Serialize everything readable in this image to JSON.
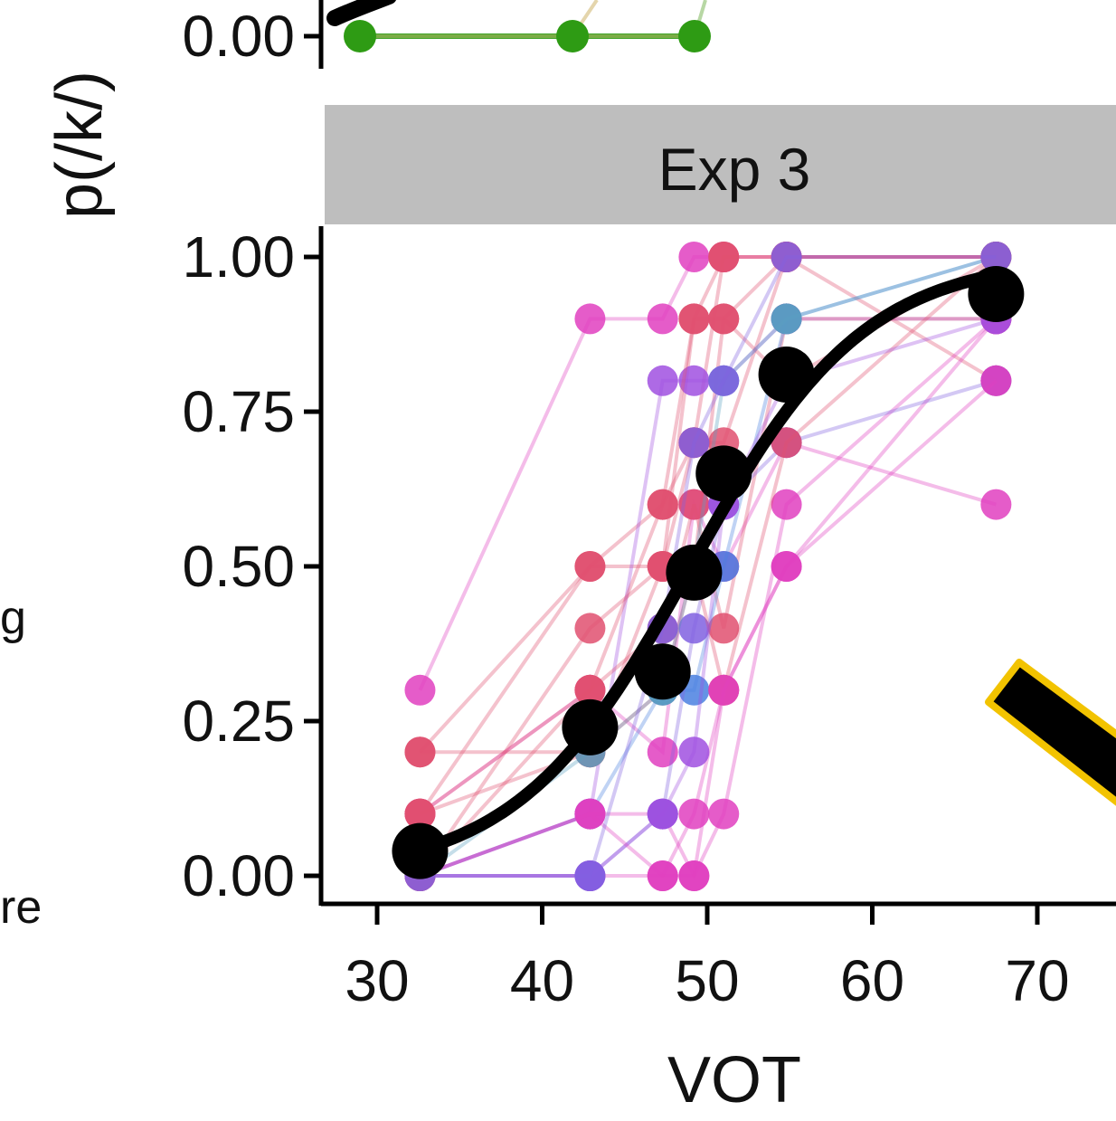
{
  "edge_text": {
    "left_fragment_1": "g",
    "left_fragment_2": "re"
  },
  "colors": {
    "fit_line": "#000000",
    "strip_bg": "#bebebe",
    "annotation_fill": "#000000",
    "annotation_outline": "#f2c300",
    "upper_panel_series": [
      "#2e9b14",
      "#c9ab5a",
      "#6fb04a"
    ]
  },
  "chart_data": [
    {
      "type": "line",
      "panel": "upper (cropped)",
      "ylabel": "p(/k/)",
      "visible_tick_labels": [
        "0.00"
      ],
      "x": [
        30,
        43,
        50.5
      ],
      "series": [
        {
          "values": [
            0.0,
            0.0,
            0.0
          ]
        }
      ]
    },
    {
      "type": "line",
      "title": "Exp 3",
      "xlabel": "VOT",
      "ylabel": "p(/k/)",
      "xlim": [
        26.5,
        73.5
      ],
      "ylim": [
        -0.045,
        1.05
      ],
      "x_ticks": [
        30,
        40,
        50,
        60,
        70
      ],
      "y_ticks": [
        0.0,
        0.25,
        0.5,
        0.75,
        1.0
      ],
      "y_tick_labels": [
        "0.00",
        "0.25",
        "0.50",
        "0.75",
        "1.00"
      ],
      "x": [
        32.6,
        42.9,
        47.3,
        49.2,
        51.0,
        54.8,
        67.5
      ],
      "mean": [
        0.04,
        0.24,
        0.33,
        0.49,
        0.65,
        0.81,
        0.94
      ],
      "fit_curve": {
        "form": "logistic",
        "midpoint": 49.0,
        "slope": 0.19
      },
      "individual_series": [
        {
          "color": "#e040c0",
          "values": [
            0.3,
            0.9,
            0.9,
            1.0,
            1.0,
            1.0,
            1.0
          ]
        },
        {
          "color": "#e05070",
          "values": [
            0.2,
            0.5,
            0.5,
            0.7,
            1.0,
            1.0,
            1.0
          ]
        },
        {
          "color": "#e05070",
          "values": [
            0.1,
            0.5,
            0.6,
            0.7,
            0.7,
            1.0,
            1.0
          ]
        },
        {
          "color": "#e05070",
          "values": [
            0.0,
            0.4,
            0.5,
            0.9,
            0.9,
            1.0,
            0.8
          ]
        },
        {
          "color": "#e040c0",
          "values": [
            0.1,
            0.3,
            0.2,
            0.6,
            0.5,
            0.7,
            0.6
          ]
        },
        {
          "color": "#e05070",
          "values": [
            0.2,
            0.2,
            0.3,
            0.5,
            0.9,
            0.8,
            1.0
          ]
        },
        {
          "color": "#a050e0",
          "values": [
            0.0,
            0.1,
            0.8,
            0.8,
            0.8,
            0.9,
            0.9
          ]
        },
        {
          "color": "#e040c0",
          "values": [
            0.0,
            0.0,
            0.0,
            0.1,
            0.3,
            0.5,
            0.9
          ]
        },
        {
          "color": "#e05070",
          "values": [
            0.1,
            0.3,
            0.4,
            0.6,
            0.4,
            0.9,
            0.9
          ]
        },
        {
          "color": "#4a80e0",
          "values": [
            0.0,
            0.1,
            0.3,
            0.3,
            0.5,
            0.9,
            1.0
          ]
        },
        {
          "color": "#e040c0",
          "values": [
            0.0,
            0.1,
            0.1,
            0.0,
            0.1,
            0.6,
            0.9
          ]
        },
        {
          "color": "#8060e0",
          "values": [
            0.0,
            0.0,
            0.1,
            0.4,
            0.6,
            0.7,
            0.8
          ]
        },
        {
          "color": "#e05070",
          "values": [
            0.1,
            0.2,
            0.5,
            0.5,
            0.3,
            0.7,
            1.0
          ]
        },
        {
          "color": "#a050e0",
          "values": [
            0.0,
            0.0,
            0.1,
            0.2,
            0.6,
            0.8,
            0.9
          ]
        },
        {
          "color": "#5aa0c0",
          "values": [
            0.0,
            0.2,
            0.3,
            0.5,
            0.8,
            0.9,
            1.0
          ]
        },
        {
          "color": "#e040c0",
          "values": [
            0.0,
            0.1,
            0.0,
            0.0,
            0.3,
            0.5,
            0.8
          ]
        },
        {
          "color": "#e05070",
          "values": [
            0.0,
            0.3,
            0.6,
            0.9,
            1.0,
            1.0,
            1.0
          ]
        },
        {
          "color": "#8060e0",
          "values": [
            0.0,
            0.0,
            0.4,
            0.7,
            0.8,
            1.0,
            1.0
          ]
        }
      ]
    }
  ]
}
